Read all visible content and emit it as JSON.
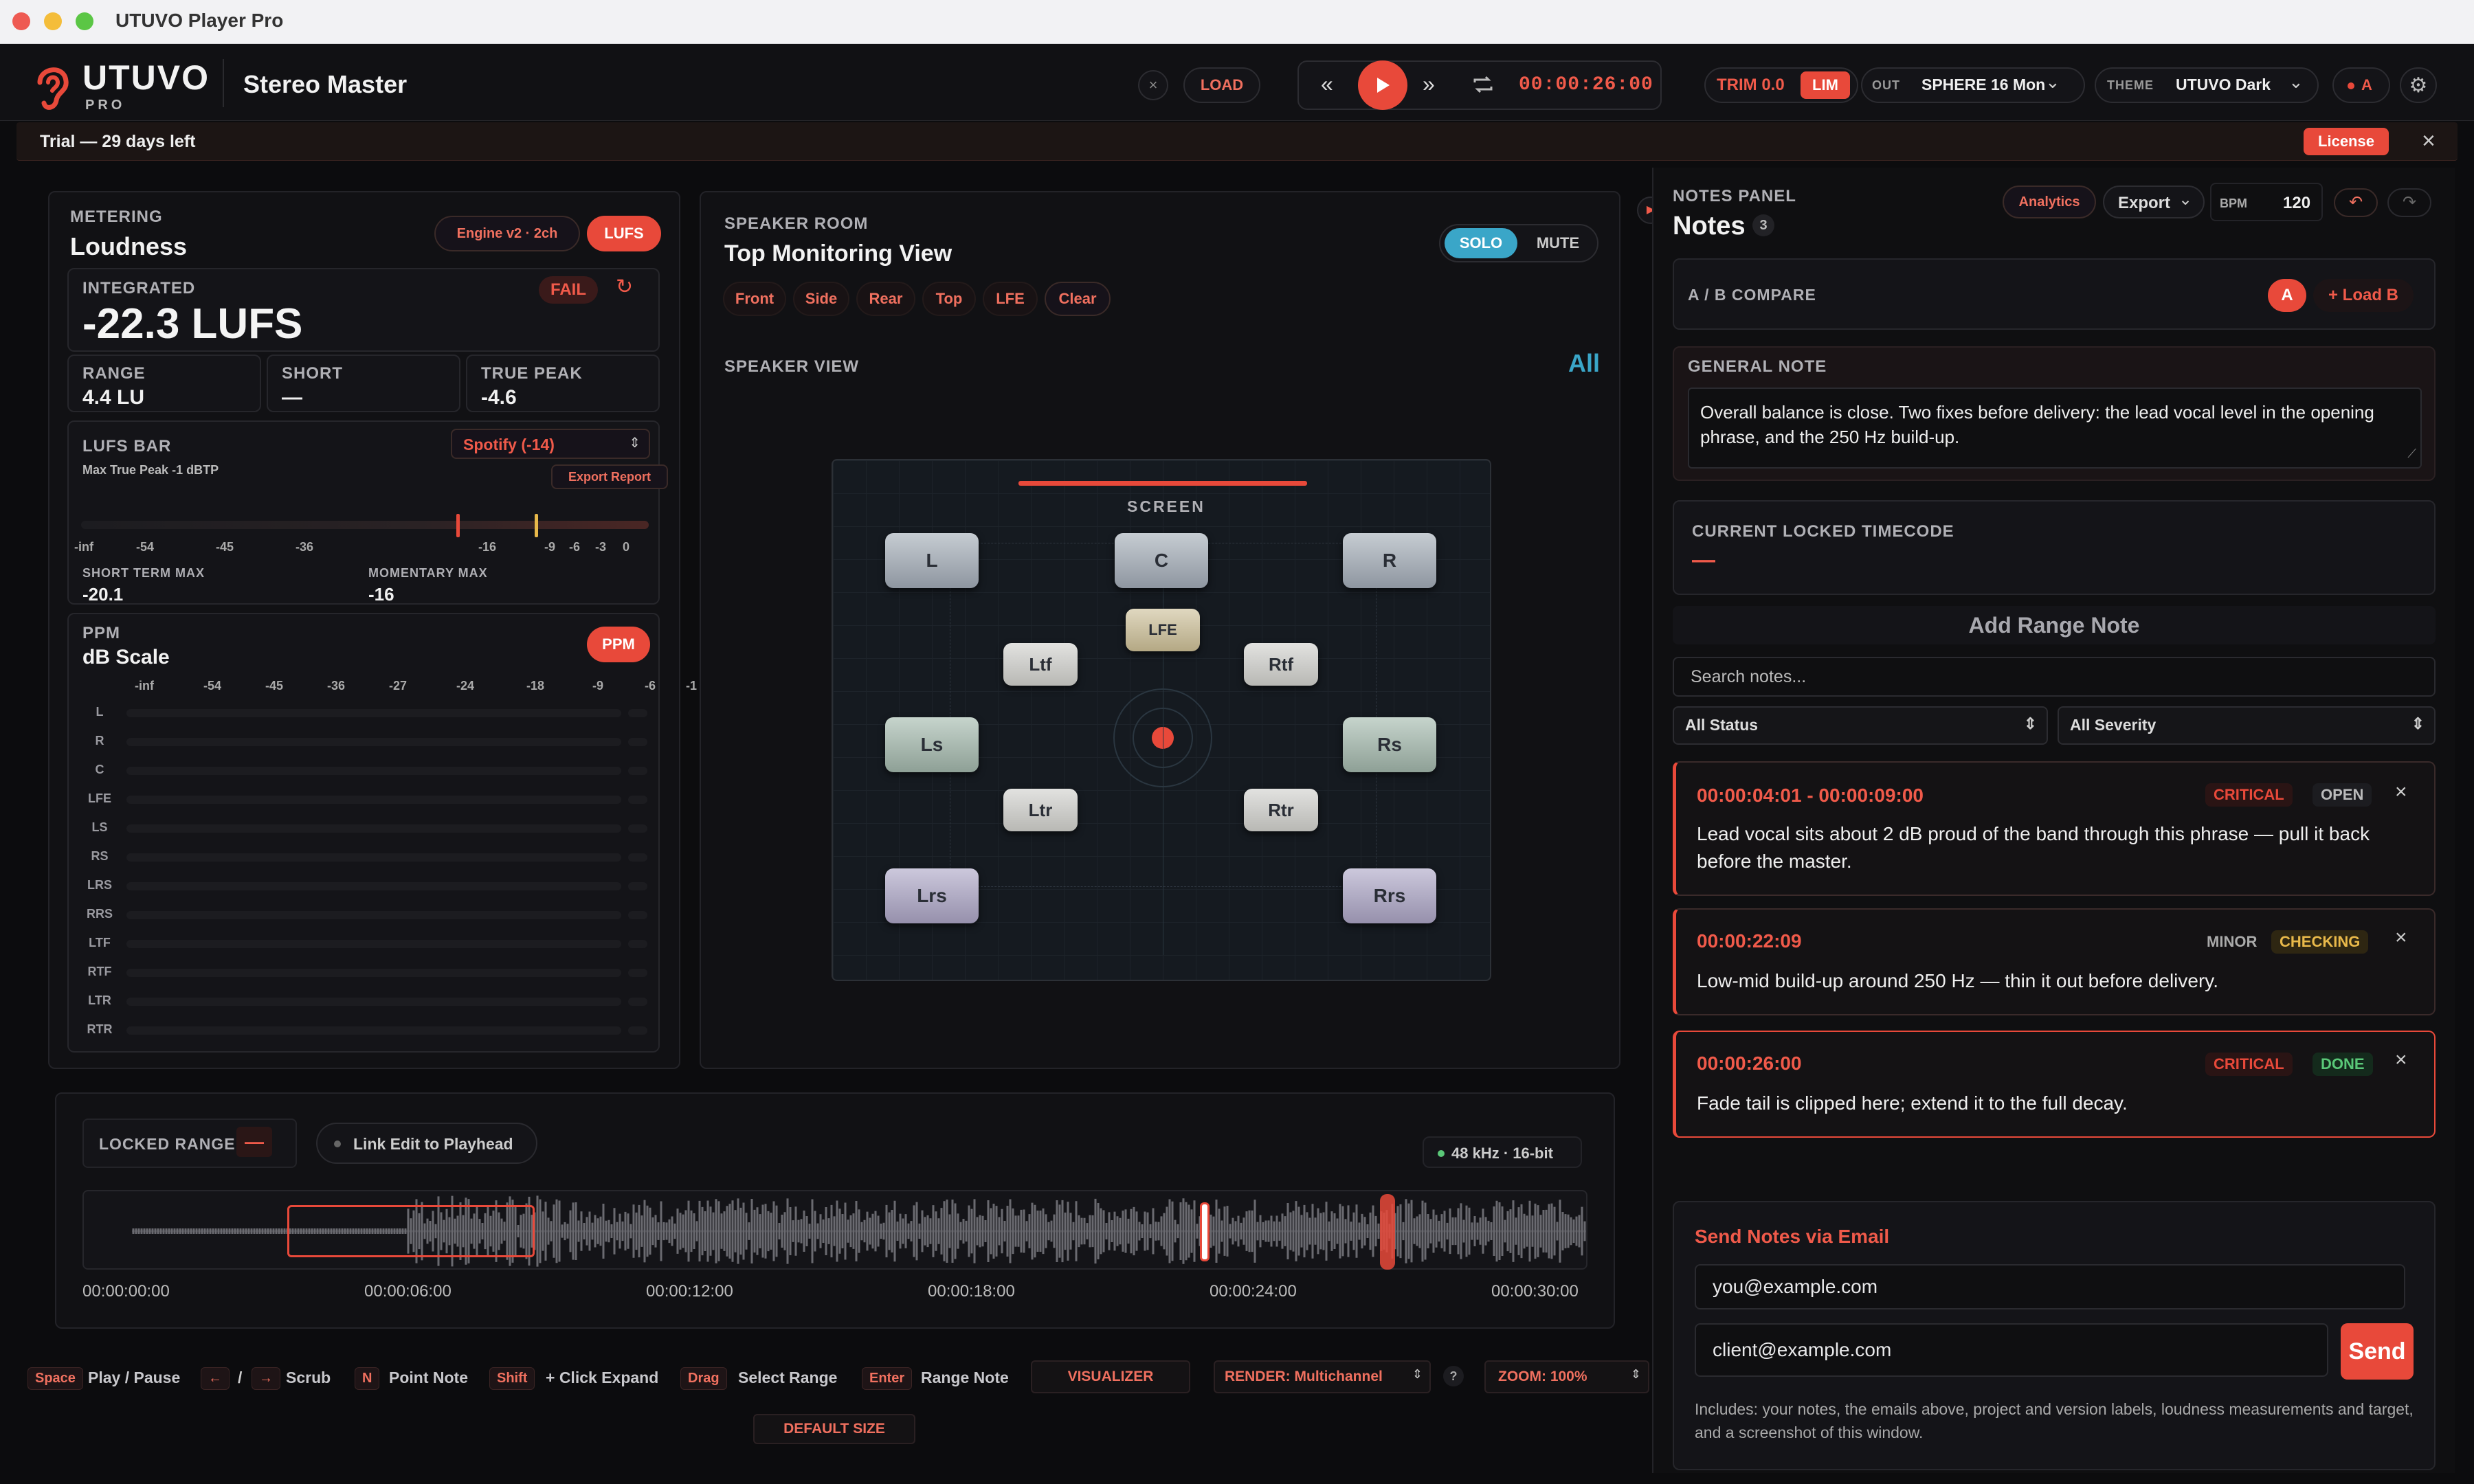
{
  "window": {
    "title": "UTUVO Player Pro"
  },
  "brand": {
    "name": "UTUVO",
    "edition": "PRO"
  },
  "project": {
    "title": "Stereo Master"
  },
  "transport": {
    "load_label": "LOAD",
    "timecode": "00:00:26:00"
  },
  "output": {
    "trim": "TRIM 0.0",
    "lim": "LIM",
    "out_label": "OUT",
    "device": "SPHERE 16 Mon",
    "theme_label": "THEME",
    "theme": "UTUVO Dark",
    "ab": "A"
  },
  "trial": {
    "text": "Trial — 29 days left",
    "license": "License"
  },
  "metering": {
    "section": "METERING",
    "title": "Loudness",
    "engine": "Engine v2 · 2ch",
    "lufs_btn": "LUFS",
    "integrated_label": "INTEGRATED",
    "integrated_value": "-22.3 LUFS",
    "status": "FAIL",
    "range_label": "RANGE",
    "range_value": "4.4 LU",
    "short_label": "SHORT",
    "short_value": "—",
    "tp_label": "TRUE PEAK",
    "tp_value": "-4.6",
    "bar_label": "LUFS BAR",
    "bar_sub": "Max True Peak -1 dBTP",
    "preset": "Spotify (-14)",
    "export": "Export Report",
    "scale": [
      "-inf",
      "-54",
      "-45",
      "-36",
      "-16",
      "-9",
      "-6",
      "-3",
      "0"
    ],
    "stm_label": "SHORT TERM MAX",
    "stm_value": "-20.1",
    "mm_label": "MOMENTARY MAX",
    "mm_value": "-16"
  },
  "ppm": {
    "section": "PPM",
    "title": "dB Scale",
    "btn": "PPM",
    "scale": [
      "-inf",
      "-54",
      "-45",
      "-36",
      "-27",
      "-24",
      "-18",
      "-9",
      "-6",
      "-1"
    ],
    "channels": [
      "L",
      "R",
      "C",
      "LFE",
      "LS",
      "RS",
      "LRS",
      "RRS",
      "LTF",
      "RTF",
      "LTR",
      "RTR"
    ]
  },
  "room": {
    "section": "SPEAKER ROOM",
    "title": "Top Monitoring View",
    "solo": "SOLO",
    "mute": "MUTE",
    "filters": [
      "Front",
      "Side",
      "Rear",
      "Top",
      "LFE",
      "Clear"
    ],
    "view_label": "SPEAKER VIEW",
    "view_all": "All",
    "screen": "SCREEN",
    "speakers": {
      "L": "L",
      "C": "C",
      "R": "R",
      "LFE": "LFE",
      "Ltf": "Ltf",
      "Rtf": "Rtf",
      "Ls": "Ls",
      "Rs": "Rs",
      "Ltr": "Ltr",
      "Rtr": "Rtr",
      "Lrs": "Lrs",
      "Rrs": "Rrs"
    }
  },
  "timeline": {
    "locked_label": "LOCKED RANGE",
    "locked_value": "—",
    "link_label": "Link Edit to Playhead",
    "format": "48 kHz · 16-bit",
    "times": [
      "00:00:00:00",
      "00:00:06:00",
      "00:00:12:00",
      "00:00:18:00",
      "00:00:24:00",
      "00:00:30:00"
    ]
  },
  "shortcuts": [
    {
      "key": "Space",
      "label": "Play / Pause"
    },
    {
      "key": "N",
      "label": "Point Note"
    },
    {
      "key": "Shift",
      "label": "+ Click Expand"
    },
    {
      "key": "Drag",
      "label": "Select Range"
    },
    {
      "key": "Enter",
      "label": "Range Note"
    }
  ],
  "scrub": {
    "sep": "/",
    "label": "Scrub",
    "left": "←",
    "right": "→"
  },
  "footer": {
    "visualizer": "VISUALIZER",
    "render": "RENDER: Multichannel",
    "help": "?",
    "zoom": "ZOOM: 100%",
    "default_size": "DEFAULT SIZE"
  },
  "notes": {
    "section": "NOTES PANEL",
    "title": "Notes",
    "count": "3",
    "analytics": "Analytics",
    "export": "Export",
    "bpm_label": "BPM",
    "bpm": "120",
    "ab_label": "A / B COMPARE",
    "ab_a": "A",
    "ab_b": "+ Load B",
    "general_label": "GENERAL NOTE",
    "general_text": "Overall balance is close. Two fixes before delivery: the lead vocal level in the opening phrase, and the 250 Hz build-up.",
    "locked_label": "CURRENT LOCKED TIMECODE",
    "locked_value": "—",
    "add_range": "Add Range Note",
    "search_placeholder": "Search notes...",
    "status_filter": "All Status",
    "severity_filter": "All Severity",
    "items": [
      {
        "time": "00:00:04:01 - 00:00:09:00",
        "severity": "CRITICAL",
        "state": "OPEN",
        "text": "Lead vocal sits about 2 dB proud of the band through this phrase — pull it back before the master."
      },
      {
        "time": "00:00:22:09",
        "severity": "MINOR",
        "state": "CHECKING",
        "text": "Low-mid build-up around 250 Hz — thin it out before delivery."
      },
      {
        "time": "00:00:26:00",
        "severity": "CRITICAL",
        "state": "DONE",
        "text": "Fade tail is clipped here; extend it to the full decay."
      }
    ],
    "email_title": "Send Notes via Email",
    "email1": "you@example.com",
    "email2": "client@example.com",
    "send": "Send",
    "email_info": "Includes: your notes, the emails above, project and version labels, loudness measurements and target, and a screenshot of this window."
  },
  "colors": {
    "accent": "#e8493a",
    "solo": "#3aa6c8",
    "done": "#5ac878",
    "checking": "#e8b84a"
  }
}
